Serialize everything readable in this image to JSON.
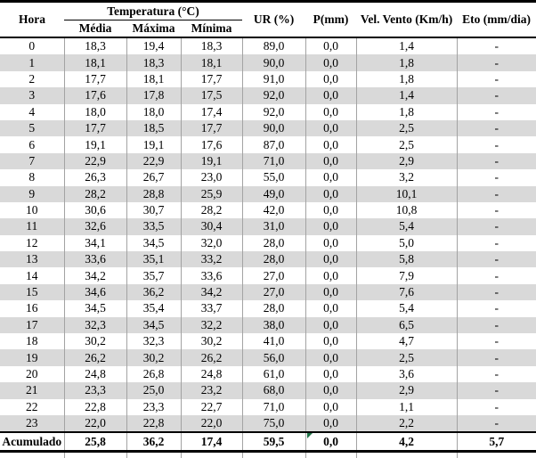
{
  "colors": {
    "row_stripe": "#d9d9d9",
    "grid_separator": "#a3a3a3",
    "table_border": "#000000",
    "indicator_green": "#1e7145"
  },
  "chart_data": {
    "type": "table",
    "header": {
      "hora": "Hora",
      "temperatura_group": "Temperatura (°C)",
      "sub": [
        "Média",
        "Máxima",
        "Mínima"
      ],
      "ur": "UR (%)",
      "p": "P(mm)",
      "vel_vento": "Vel. Vento (Km/h)",
      "eto": "Eto (mm/dia)"
    },
    "columns": [
      "Hora",
      "Média",
      "Máxima",
      "Mínima",
      "UR (%)",
      "P(mm)",
      "Vel. Vento (Km/h)",
      "Eto (mm/dia)"
    ],
    "rows": [
      [
        "0",
        "18,3",
        "19,4",
        "18,3",
        "89,0",
        "0,0",
        "1,4",
        "-"
      ],
      [
        "1",
        "18,1",
        "18,3",
        "18,1",
        "90,0",
        "0,0",
        "1,8",
        "-"
      ],
      [
        "2",
        "17,7",
        "18,1",
        "17,7",
        "91,0",
        "0,0",
        "1,8",
        "-"
      ],
      [
        "3",
        "17,6",
        "17,8",
        "17,5",
        "92,0",
        "0,0",
        "1,4",
        "-"
      ],
      [
        "4",
        "18,0",
        "18,0",
        "17,4",
        "92,0",
        "0,0",
        "1,8",
        "-"
      ],
      [
        "5",
        "17,7",
        "18,5",
        "17,7",
        "90,0",
        "0,0",
        "2,5",
        "-"
      ],
      [
        "6",
        "19,1",
        "19,1",
        "17,6",
        "87,0",
        "0,0",
        "2,5",
        "-"
      ],
      [
        "7",
        "22,9",
        "22,9",
        "19,1",
        "71,0",
        "0,0",
        "2,9",
        "-"
      ],
      [
        "8",
        "26,3",
        "26,7",
        "23,0",
        "55,0",
        "0,0",
        "3,2",
        "-"
      ],
      [
        "9",
        "28,2",
        "28,8",
        "25,9",
        "49,0",
        "0,0",
        "10,1",
        "-"
      ],
      [
        "10",
        "30,6",
        "30,7",
        "28,2",
        "42,0",
        "0,0",
        "10,8",
        "-"
      ],
      [
        "11",
        "32,6",
        "33,5",
        "30,4",
        "31,0",
        "0,0",
        "5,4",
        "-"
      ],
      [
        "12",
        "34,1",
        "34,5",
        "32,0",
        "28,0",
        "0,0",
        "5,0",
        "-"
      ],
      [
        "13",
        "33,6",
        "35,1",
        "33,2",
        "28,0",
        "0,0",
        "5,8",
        "-"
      ],
      [
        "14",
        "34,2",
        "35,7",
        "33,6",
        "27,0",
        "0,0",
        "7,9",
        "-"
      ],
      [
        "15",
        "34,6",
        "36,2",
        "34,2",
        "27,0",
        "0,0",
        "7,6",
        "-"
      ],
      [
        "16",
        "34,5",
        "35,4",
        "33,7",
        "28,0",
        "0,0",
        "5,4",
        "-"
      ],
      [
        "17",
        "32,3",
        "34,5",
        "32,2",
        "38,0",
        "0,0",
        "6,5",
        "-"
      ],
      [
        "18",
        "30,2",
        "32,3",
        "30,2",
        "41,0",
        "0,0",
        "4,7",
        "-"
      ],
      [
        "19",
        "26,2",
        "30,2",
        "26,2",
        "56,0",
        "0,0",
        "2,5",
        "-"
      ],
      [
        "20",
        "24,8",
        "26,8",
        "24,8",
        "61,0",
        "0,0",
        "3,6",
        "-"
      ],
      [
        "21",
        "23,3",
        "25,0",
        "23,2",
        "68,0",
        "0,0",
        "2,9",
        "-"
      ],
      [
        "22",
        "22,8",
        "23,3",
        "22,7",
        "71,0",
        "0,0",
        "1,1",
        "-"
      ],
      [
        "23",
        "22,0",
        "22,8",
        "22,0",
        "75,0",
        "0,0",
        "2,2",
        "-"
      ]
    ],
    "footer": {
      "label": "Acumulado",
      "values": [
        "25,8",
        "36,2",
        "17,4",
        "59,5",
        "0,0",
        "4,2",
        "5,7"
      ],
      "cell_indicator": "green-triangle-on-p-cell"
    }
  }
}
